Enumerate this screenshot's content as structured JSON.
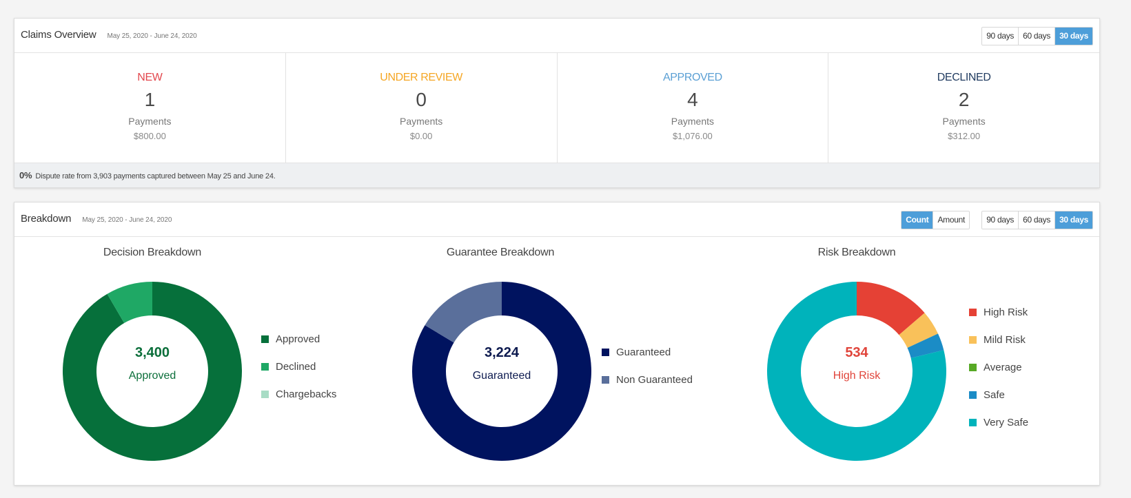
{
  "claims": {
    "title": "Claims Overview",
    "date_range": "May 25, 2020 - June 24, 2020",
    "range_buttons": [
      "90 days",
      "60 days",
      "30 days"
    ],
    "active_range": "30 days",
    "stats": [
      {
        "label": "NEW",
        "color": "#e2474d",
        "count": "1",
        "unit": "Payments",
        "amount": "$800.00"
      },
      {
        "label": "UNDER REVIEW",
        "color": "#f5a623",
        "count": "0",
        "unit": "Payments",
        "amount": "$0.00"
      },
      {
        "label": "APPROVED",
        "color": "#5a9fd4",
        "count": "4",
        "unit": "Payments",
        "amount": "$1,076.00"
      },
      {
        "label": "DECLINED",
        "color": "#1f3a5f",
        "count": "2",
        "unit": "Payments",
        "amount": "$312.00"
      }
    ],
    "footer": {
      "rate": "0%",
      "text": "Dispute rate from 3,903 payments captured between May 25 and June 24."
    }
  },
  "breakdown": {
    "title": "Breakdown",
    "date_range": "May 25, 2020 - June 24, 2020",
    "metric_buttons": [
      "Count",
      "Amount"
    ],
    "active_metric": "Count",
    "range_buttons": [
      "90 days",
      "60 days",
      "30 days"
    ],
    "active_range": "30 days"
  },
  "chart_data": [
    {
      "type": "pie",
      "title": "Decision Breakdown",
      "center_value": "3,400",
      "center_label": "Approved",
      "center_color": "#0b6e3a",
      "categories": [
        "Approved",
        "Declined",
        "Chargebacks"
      ],
      "values": [
        0.916,
        0.084,
        0.0
      ],
      "colors": [
        "#06703b",
        "#1fa865",
        "#a8dcc5"
      ]
    },
    {
      "type": "pie",
      "title": "Guarantee Breakdown",
      "center_value": "3,224",
      "center_label": "Guaranteed",
      "center_color": "#0d1a4f",
      "categories": [
        "Guaranteed",
        "Non Guaranteed"
      ],
      "values": [
        0.836,
        0.164
      ],
      "colors": [
        "#00135f",
        "#5a6f9b"
      ]
    },
    {
      "type": "pie",
      "title": "Risk Breakdown",
      "center_value": "534",
      "center_label": "High Risk",
      "center_color": "#e0443a",
      "categories": [
        "High Risk",
        "Mild Risk",
        "Average",
        "Safe",
        "Very Safe"
      ],
      "values": [
        0.137,
        0.044,
        0.0,
        0.031,
        0.788
      ],
      "colors": [
        "#e54135",
        "#f9c15a",
        "#57a925",
        "#1b8cc6",
        "#00b3bb"
      ]
    }
  ]
}
